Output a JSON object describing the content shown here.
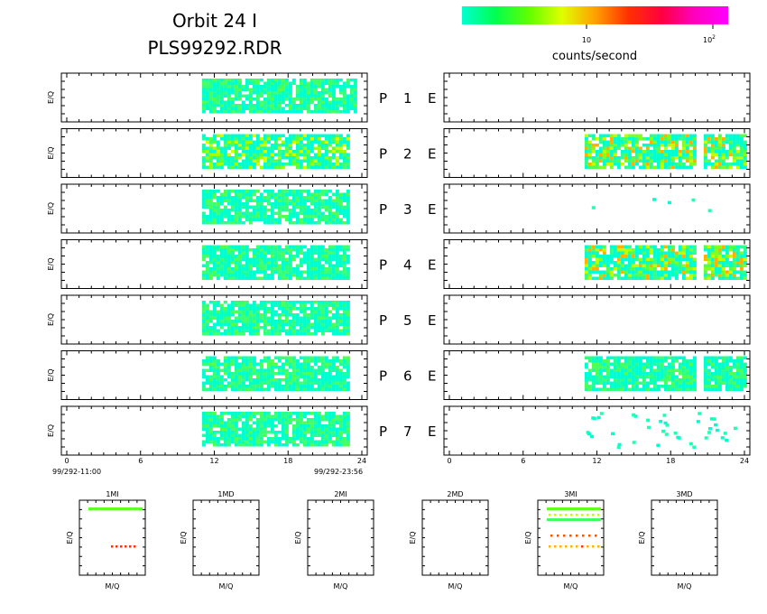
{
  "title": {
    "line1": "Orbit 24 I",
    "line2": "PLS99292.RDR"
  },
  "colorbar": {
    "label": "counts/second",
    "tick_10": "10",
    "tick_100_base": "10",
    "tick_100_exp": "2",
    "colors": [
      "#00ffd0",
      "#00ff50",
      "#60ff00",
      "#e0ff00",
      "#ffa000",
      "#ff3000",
      "#ff0040",
      "#ff00c0",
      "#ff00ff"
    ]
  },
  "panels_ylabel": "E/Q",
  "row_labels": [
    {
      "p": "P",
      "n": "1",
      "e": "E"
    },
    {
      "p": "P",
      "n": "2",
      "e": "E"
    },
    {
      "p": "P",
      "n": "3",
      "e": "E"
    },
    {
      "p": "P",
      "n": "4",
      "e": "E"
    },
    {
      "p": "P",
      "n": "5",
      "e": "E"
    },
    {
      "p": "P",
      "n": "6",
      "e": "E"
    },
    {
      "p": "P",
      "n": "7",
      "e": "E"
    }
  ],
  "xaxis_ticks": [
    "0",
    "6",
    "12",
    "18",
    "24"
  ],
  "time_start": "99/292-11:00",
  "time_end": "99/292-23:56",
  "bottom_panels": [
    {
      "title": "1MI",
      "xlabel": "M/Q",
      "ylabel": "E/Q"
    },
    {
      "title": "1MD",
      "xlabel": "M/Q",
      "ylabel": "E/Q"
    },
    {
      "title": "2MI",
      "xlabel": "M/Q",
      "ylabel": "E/Q"
    },
    {
      "title": "2MD",
      "xlabel": "M/Q",
      "ylabel": "E/Q"
    },
    {
      "title": "3MI",
      "xlabel": "M/Q",
      "ylabel": "E/Q"
    },
    {
      "title": "3MD",
      "xlabel": "M/Q",
      "ylabel": "E/Q"
    }
  ],
  "chart_data": {
    "type": "heatmap",
    "x_range_hours": [
      0,
      24
    ],
    "left_P_panels": [
      {
        "n": 1,
        "x_start": 11.0,
        "x_end": 23.5,
        "level": "low"
      },
      {
        "n": 2,
        "x_start": 11.0,
        "x_end": 23.0,
        "level": "low-mid"
      },
      {
        "n": 3,
        "x_start": 11.0,
        "x_end": 23.0,
        "level": "low"
      },
      {
        "n": 4,
        "x_start": 11.0,
        "x_end": 23.0,
        "level": "low"
      },
      {
        "n": 5,
        "x_start": 11.0,
        "x_end": 23.0,
        "level": "low"
      },
      {
        "n": 6,
        "x_start": 11.0,
        "x_end": 23.0,
        "level": "low"
      },
      {
        "n": 7,
        "x_start": 11.0,
        "x_end": 23.0,
        "level": "low"
      }
    ],
    "right_E_panels": [
      {
        "n": 1,
        "x_start": null,
        "x_end": null,
        "level": "none"
      },
      {
        "n": 2,
        "x_start": 11.0,
        "x_end": 24.0,
        "gap": [
          20.0,
          20.5
        ],
        "level": "mid"
      },
      {
        "n": 3,
        "x_start": null,
        "x_end": null,
        "level": "sparse"
      },
      {
        "n": 4,
        "x_start": 11.0,
        "x_end": 24.0,
        "gap": [
          20.0,
          20.5
        ],
        "level": "mid"
      },
      {
        "n": 5,
        "x_start": null,
        "x_end": null,
        "level": "none"
      },
      {
        "n": 6,
        "x_start": 11.0,
        "x_end": 24.0,
        "gap": [
          20.0,
          20.5
        ],
        "level": "low"
      },
      {
        "n": 7,
        "x_start": 11.0,
        "x_end": 24.0,
        "level": "sparse"
      }
    ]
  }
}
